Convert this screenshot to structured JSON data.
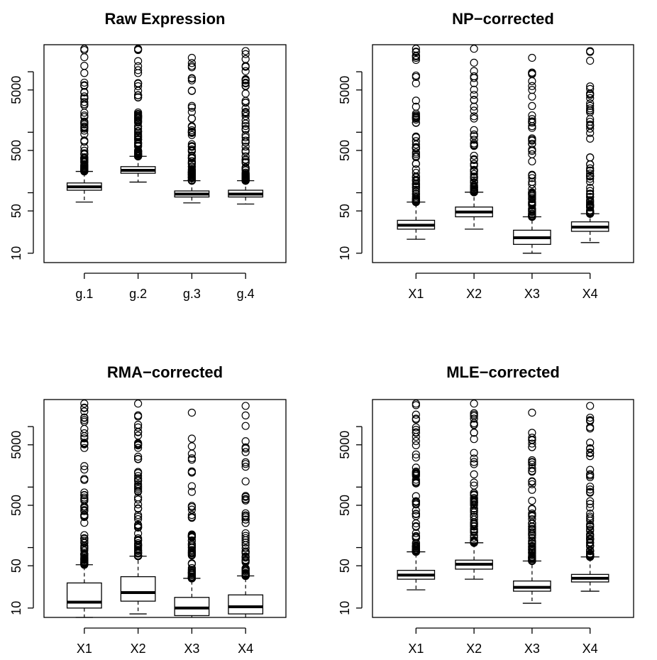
{
  "chart_data": [
    {
      "type": "box",
      "title": "Raw Expression",
      "categories": [
        "g.1",
        "g.2",
        "g.3",
        "g.4"
      ],
      "y_scale": "log",
      "y_ticks": [
        "10",
        "50",
        "500",
        "5000"
      ],
      "ylim": [
        7,
        28000
      ],
      "boxes": [
        {
          "min": 70,
          "q1": 110,
          "median": 125,
          "q3": 145,
          "max_whisker": 225,
          "outlier_max": 24000
        },
        {
          "min": 150,
          "q1": 210,
          "median": 235,
          "q3": 270,
          "max_whisker": 400,
          "outlier_max": 24000
        },
        {
          "min": 68,
          "q1": 85,
          "median": 95,
          "q3": 107,
          "max_whisker": 158,
          "outlier_max": 17000
        },
        {
          "min": 65,
          "q1": 85,
          "median": 95,
          "q3": 110,
          "max_whisker": 158,
          "outlier_max": 22000
        }
      ]
    },
    {
      "type": "box",
      "title": "NP−corrected",
      "categories": [
        "X1",
        "X2",
        "X3",
        "X4"
      ],
      "y_scale": "log",
      "y_ticks": [
        "10",
        "50",
        "500",
        "5000"
      ],
      "ylim": [
        7,
        28000
      ],
      "boxes": [
        {
          "min": 17,
          "q1": 25,
          "median": 29,
          "q3": 35,
          "max_whisker": 70,
          "outlier_max": 24000
        },
        {
          "min": 25,
          "q1": 40,
          "median": 48,
          "q3": 58,
          "max_whisker": 102,
          "outlier_max": 24000
        },
        {
          "min": 10,
          "q1": 14,
          "median": 18,
          "q3": 24,
          "max_whisker": 40,
          "outlier_max": 17000
        },
        {
          "min": 15,
          "q1": 23,
          "median": 27,
          "q3": 33,
          "max_whisker": 45,
          "outlier_max": 22000
        }
      ]
    },
    {
      "type": "box",
      "title": "RMA−corrected",
      "categories": [
        "X1",
        "X2",
        "X3",
        "X4"
      ],
      "y_scale": "log",
      "y_ticks": [
        "10",
        "50",
        "500",
        "5000"
      ],
      "ylim": [
        7,
        28000
      ],
      "boxes": [
        {
          "min": 7,
          "q1": 10,
          "median": 12.5,
          "q3": 26,
          "max_whisker": 52,
          "outlier_max": 24000
        },
        {
          "min": 8,
          "q1": 13,
          "median": 18,
          "q3": 33,
          "max_whisker": 72,
          "outlier_max": 24000
        },
        {
          "min": 6,
          "q1": 7.5,
          "median": 10,
          "q3": 15,
          "max_whisker": 31,
          "outlier_max": 17000
        },
        {
          "min": 6,
          "q1": 8,
          "median": 10.5,
          "q3": 16.5,
          "max_whisker": 34,
          "outlier_max": 22000
        }
      ]
    },
    {
      "type": "box",
      "title": "MLE−corrected",
      "categories": [
        "X1",
        "X2",
        "X3",
        "X4"
      ],
      "y_scale": "log",
      "y_ticks": [
        "10",
        "50",
        "500",
        "5000"
      ],
      "ylim": [
        7,
        28000
      ],
      "boxes": [
        {
          "min": 20,
          "q1": 30,
          "median": 35,
          "q3": 42,
          "max_whisker": 85,
          "outlier_max": 24000
        },
        {
          "min": 30,
          "q1": 44,
          "median": 53,
          "q3": 62,
          "max_whisker": 120,
          "outlier_max": 24000
        },
        {
          "min": 12,
          "q1": 19,
          "median": 22,
          "q3": 28,
          "max_whisker": 60,
          "outlier_max": 17000
        },
        {
          "min": 19,
          "q1": 27,
          "median": 31,
          "q3": 36,
          "max_whisker": 70,
          "outlier_max": 22000
        }
      ]
    }
  ]
}
